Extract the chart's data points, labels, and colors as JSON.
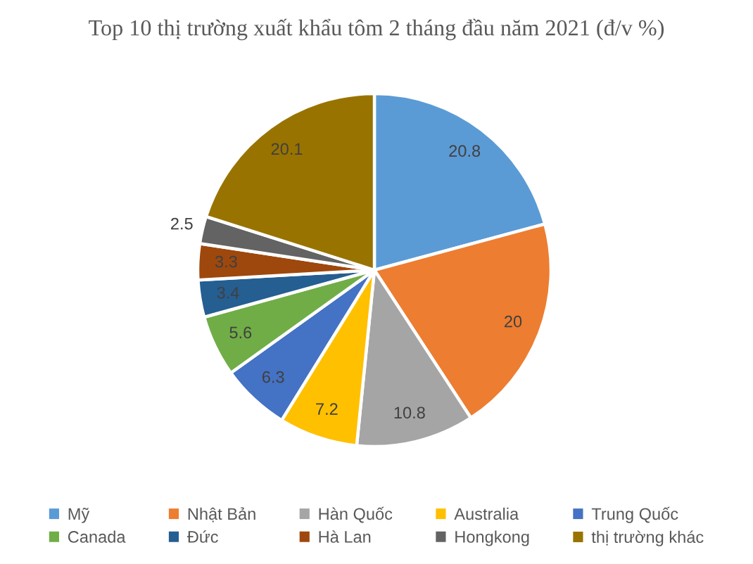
{
  "chart_data": {
    "type": "pie",
    "title": "Top 10 thị trường xuất khẩu tôm 2 tháng đầu năm 2021 (đ/v %)",
    "categories": [
      "Mỹ",
      "Nhật Bản",
      "Hàn Quốc",
      "Australia",
      "Trung Quốc",
      "Canada",
      "Đức",
      "Hà Lan",
      "Hongkong",
      "thị trường khác"
    ],
    "values": [
      20.8,
      20,
      10.8,
      7.2,
      6.3,
      5.6,
      3.4,
      3.3,
      2.5,
      20.1
    ],
    "colors": [
      "#5b9bd5",
      "#ed7d31",
      "#a5a5a5",
      "#ffc000",
      "#4472c4",
      "#70ad47",
      "#255e91",
      "#9e480e",
      "#636363",
      "#997300"
    ],
    "data_labels": true,
    "legend": "bottom"
  }
}
